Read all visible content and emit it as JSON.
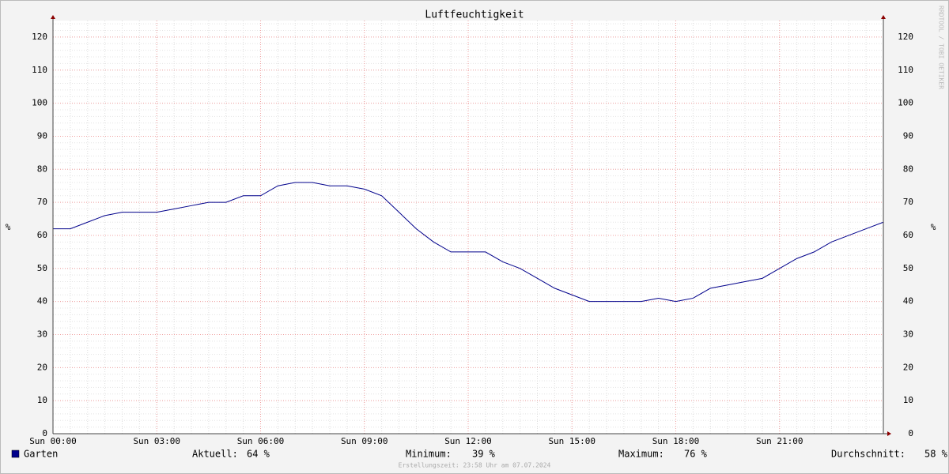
{
  "chart_data": {
    "type": "line",
    "title": "Luftfeuchtigkeit",
    "y_label": "%",
    "watermark": "RRDTOOL / TOBI OETIKER",
    "xlim": [
      0,
      24
    ],
    "xticks": [
      {
        "value": 0,
        "label": "Sun 00:00"
      },
      {
        "value": 3,
        "label": "Sun 03:00"
      },
      {
        "value": 6,
        "label": "Sun 06:00"
      },
      {
        "value": 9,
        "label": "Sun 09:00"
      },
      {
        "value": 12,
        "label": "Sun 12:00"
      },
      {
        "value": 15,
        "label": "Sun 15:00"
      },
      {
        "value": 18,
        "label": "Sun 18:00"
      },
      {
        "value": 21,
        "label": "Sun 21:00"
      }
    ],
    "ylim": [
      0,
      125
    ],
    "yticks": [
      0,
      10,
      20,
      30,
      40,
      50,
      60,
      70,
      80,
      90,
      100,
      110,
      120
    ],
    "grid": true,
    "x": [
      0,
      0.5,
      1,
      1.5,
      2,
      2.5,
      3,
      3.5,
      4,
      4.5,
      5,
      5.5,
      6,
      6.5,
      7,
      7.5,
      8,
      8.5,
      9,
      9.5,
      10,
      10.5,
      11,
      11.5,
      12,
      12.5,
      13,
      13.5,
      14,
      14.5,
      15,
      15.5,
      16,
      16.5,
      17,
      17.5,
      18,
      18.5,
      19,
      19.5,
      20,
      20.5,
      21,
      21.5,
      22,
      22.5,
      23,
      23.5,
      24
    ],
    "series": [
      {
        "name": "Garten",
        "color": "#00008b",
        "values": [
          62,
          62,
          64,
          66,
          67,
          67,
          67,
          68,
          69,
          70,
          70,
          72,
          72,
          75,
          76,
          76,
          75,
          75,
          74,
          72,
          67,
          62,
          58,
          55,
          55,
          55,
          52,
          50,
          47,
          44,
          42,
          40,
          40,
          40,
          40,
          41,
          40,
          41,
          44,
          45,
          46,
          47,
          50,
          53,
          55,
          58,
          60,
          62,
          64
        ]
      }
    ],
    "stats": [
      {
        "label": "Aktuell:",
        "value": "64 %"
      },
      {
        "label": "Minimum:",
        "value": "39 %"
      },
      {
        "label": "Maximum:",
        "value": "76 %"
      },
      {
        "label": "Durchschnitt:",
        "value": "58 %"
      }
    ],
    "footer": "Erstellungszeit: 23:58 Uhr am 07.07.2024"
  }
}
